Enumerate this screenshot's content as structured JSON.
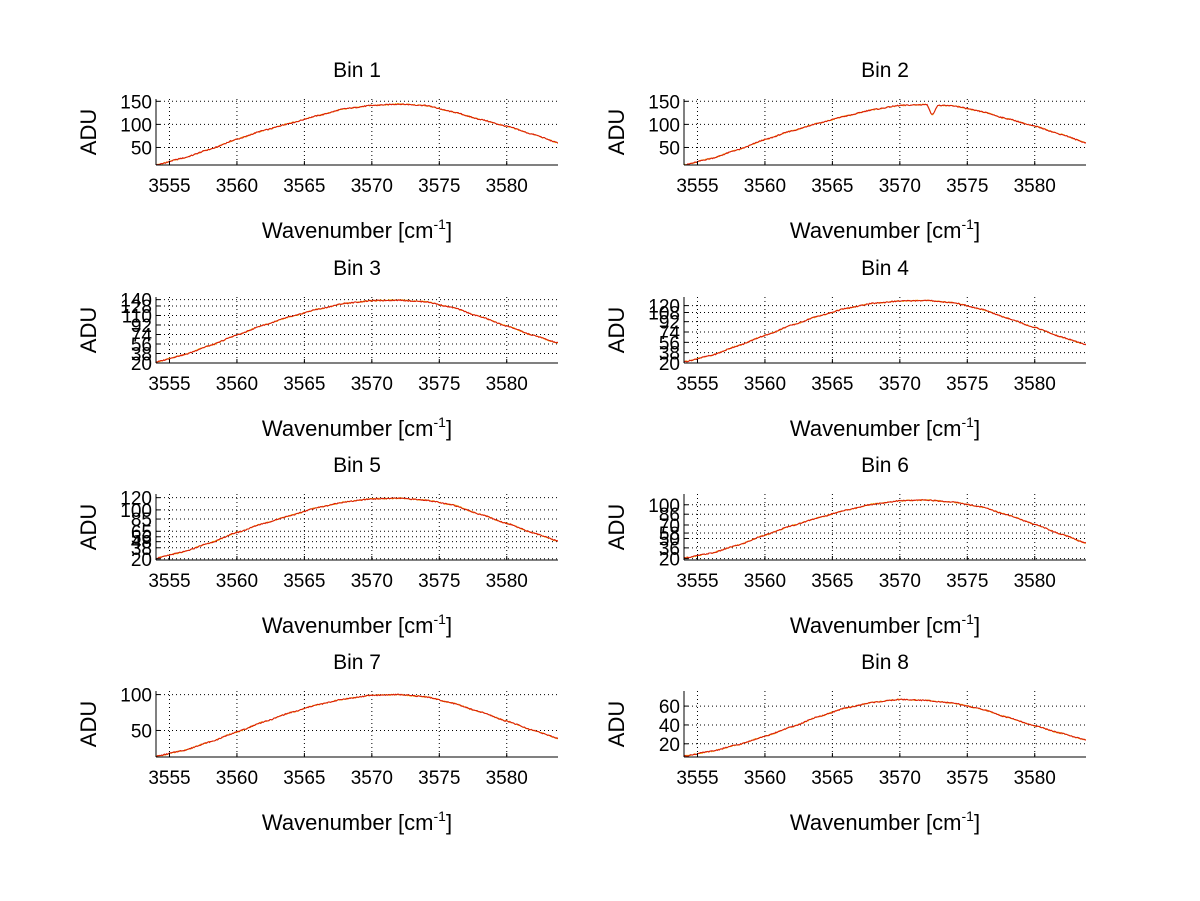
{
  "colors": {
    "series_red": "#dd1a0a",
    "series_orange": "#f0a000",
    "series_dark": "#333333"
  },
  "chart_data": [
    {
      "type": "line",
      "title": "Bin 1",
      "xlabel_base": "Wavenumber [cm",
      "xlabel_sup": "-1",
      "xlabel_end": "]",
      "ylabel": "ADU",
      "xlim": [
        3554,
        3583.8
      ],
      "ylim": [
        12,
        155
      ],
      "xticks": [
        3555,
        3560,
        3565,
        3570,
        3575,
        3580
      ],
      "yticks": [
        50,
        100,
        150
      ],
      "grid": true,
      "x": [
        3554,
        3556,
        3558,
        3560,
        3562,
        3564,
        3566,
        3568,
        3570,
        3572,
        3574,
        3576,
        3578,
        3580,
        3582,
        3583.8
      ],
      "series": [
        {
          "values": [
            12,
            27,
            46,
            68,
            87,
            103,
            119,
            134,
            141,
            144,
            141,
            127,
            111,
            96,
            78,
            60
          ]
        }
      ]
    },
    {
      "type": "line",
      "title": "Bin 2",
      "xlabel_base": "Wavenumber [cm",
      "xlabel_sup": "-1",
      "xlabel_end": "]",
      "ylabel": "ADU",
      "xlim": [
        3554,
        3583.8
      ],
      "ylim": [
        12,
        155
      ],
      "xticks": [
        3555,
        3560,
        3565,
        3570,
        3575,
        3580
      ],
      "yticks": [
        50,
        100,
        150
      ],
      "grid": true,
      "x": [
        3554,
        3556,
        3558,
        3560,
        3562,
        3564,
        3566,
        3568,
        3570,
        3572,
        3572.4,
        3572.8,
        3574,
        3576,
        3578,
        3580,
        3582,
        3583.8
      ],
      "series": [
        {
          "values": [
            12,
            26,
            45,
            67,
            86,
            103,
            118,
            132,
            141,
            143,
            120,
            141,
            140,
            128,
            112,
            96,
            78,
            60
          ]
        }
      ]
    },
    {
      "type": "line",
      "title": "Bin 3",
      "xlabel_base": "Wavenumber [cm",
      "xlabel_sup": "-1",
      "xlabel_end": "]",
      "ylabel": "ADU",
      "xlim": [
        3554,
        3583.8
      ],
      "ylim": [
        20,
        145
      ],
      "xticks": [
        3555,
        3560,
        3565,
        3570,
        3575,
        3580
      ],
      "yticks": [
        20,
        38,
        56,
        74,
        92,
        110,
        128,
        140
      ],
      "grid": true,
      "x": [
        3554,
        3556,
        3558,
        3560,
        3562,
        3564,
        3566,
        3568,
        3570,
        3572,
        3574,
        3576,
        3578,
        3580,
        3582,
        3583.8
      ],
      "series": [
        {
          "values": [
            22,
            35,
            53,
            73,
            92,
            108,
            122,
            133,
            138,
            139,
            136,
            125,
            108,
            90,
            72,
            58
          ]
        }
      ]
    },
    {
      "type": "line",
      "title": "Bin 4",
      "xlabel_base": "Wavenumber [cm",
      "xlabel_sup": "-1",
      "xlabel_end": "]",
      "ylabel": "ADU",
      "xlim": [
        3554,
        3583.8
      ],
      "ylim": [
        20,
        135
      ],
      "xticks": [
        3555,
        3560,
        3565,
        3570,
        3575,
        3580
      ],
      "yticks": [
        20,
        38,
        56,
        74,
        92,
        108,
        120
      ],
      "grid": true,
      "x": [
        3554,
        3556,
        3558,
        3560,
        3562,
        3564,
        3566,
        3568,
        3570,
        3572,
        3574,
        3576,
        3578,
        3580,
        3582,
        3583.8
      ],
      "series": [
        {
          "values": [
            22,
            33,
            50,
            68,
            86,
            102,
            115,
            124,
            128,
            129,
            125,
            114,
            98,
            82,
            65,
            52
          ]
        }
      ]
    },
    {
      "type": "line",
      "title": "Bin 5",
      "xlabel_base": "Wavenumber [cm",
      "xlabel_sup": "-1",
      "xlabel_end": "]",
      "ylabel": "ADU",
      "xlim": [
        3554,
        3583.8
      ],
      "ylim": [
        18,
        126
      ],
      "xticks": [
        3555,
        3560,
        3565,
        3570,
        3575,
        3580
      ],
      "yticks": [
        20,
        38,
        48,
        56,
        65,
        85,
        100,
        120
      ],
      "grid": true,
      "x": [
        3554,
        3556,
        3558,
        3560,
        3562,
        3564,
        3566,
        3568,
        3570,
        3572,
        3574,
        3576,
        3578,
        3580,
        3582,
        3583.8
      ],
      "series": [
        {
          "values": [
            21,
            31,
            46,
            63,
            78,
            91,
            104,
            113,
            118,
            119,
            116,
            108,
            93,
            78,
            62,
            49
          ]
        }
      ]
    },
    {
      "type": "line",
      "title": "Bin 6",
      "xlabel_base": "Wavenumber [cm",
      "xlabel_sup": "-1",
      "xlabel_end": "]",
      "ylabel": "ADU",
      "xlim": [
        3554,
        3583.8
      ],
      "ylim": [
        18,
        116
      ],
      "xticks": [
        3555,
        3560,
        3565,
        3570,
        3575,
        3580
      ],
      "yticks": [
        20,
        36,
        50,
        58,
        70,
        86,
        100
      ],
      "grid": true,
      "x": [
        3554,
        3556,
        3558,
        3560,
        3562,
        3564,
        3566,
        3568,
        3570,
        3572,
        3574,
        3576,
        3578,
        3580,
        3582,
        3583.8
      ],
      "series": [
        {
          "values": [
            21,
            28,
            40,
            55,
            69,
            81,
            92,
            101,
            106,
            107,
            104,
            97,
            85,
            71,
            56,
            43
          ]
        }
      ]
    },
    {
      "type": "line",
      "title": "Bin 7",
      "xlabel_base": "Wavenumber [cm",
      "xlabel_sup": "-1",
      "xlabel_end": "]",
      "ylabel": "ADU",
      "xlim": [
        3554,
        3583.8
      ],
      "ylim": [
        13,
        105
      ],
      "xticks": [
        3555,
        3560,
        3565,
        3570,
        3575,
        3580
      ],
      "yticks": [
        50,
        100
      ],
      "grid": true,
      "x": [
        3554,
        3556,
        3558,
        3560,
        3562,
        3564,
        3566,
        3568,
        3570,
        3572,
        3574,
        3576,
        3578,
        3580,
        3582,
        3583.8
      ],
      "series": [
        {
          "values": [
            14,
            22,
            34,
            48,
            62,
            75,
            86,
            94,
            99,
            100,
            97,
            88,
            76,
            63,
            50,
            39
          ]
        }
      ]
    },
    {
      "type": "line",
      "title": "Bin 8",
      "xlabel_base": "Wavenumber [cm",
      "xlabel_sup": "-1",
      "xlabel_end": "]",
      "ylabel": "ADU",
      "xlim": [
        3554,
        3583.8
      ],
      "ylim": [
        6,
        76
      ],
      "xticks": [
        3555,
        3560,
        3565,
        3570,
        3575,
        3580
      ],
      "yticks": [
        20,
        40,
        60
      ],
      "grid": true,
      "x": [
        3554,
        3556,
        3558,
        3560,
        3562,
        3564,
        3566,
        3568,
        3570,
        3572,
        3574,
        3576,
        3578,
        3580,
        3582,
        3583.8
      ],
      "series": [
        {
          "values": [
            7,
            12,
            19,
            28,
            38,
            49,
            58,
            64,
            67,
            66,
            63,
            57,
            48,
            39,
            31,
            24
          ]
        }
      ]
    }
  ]
}
